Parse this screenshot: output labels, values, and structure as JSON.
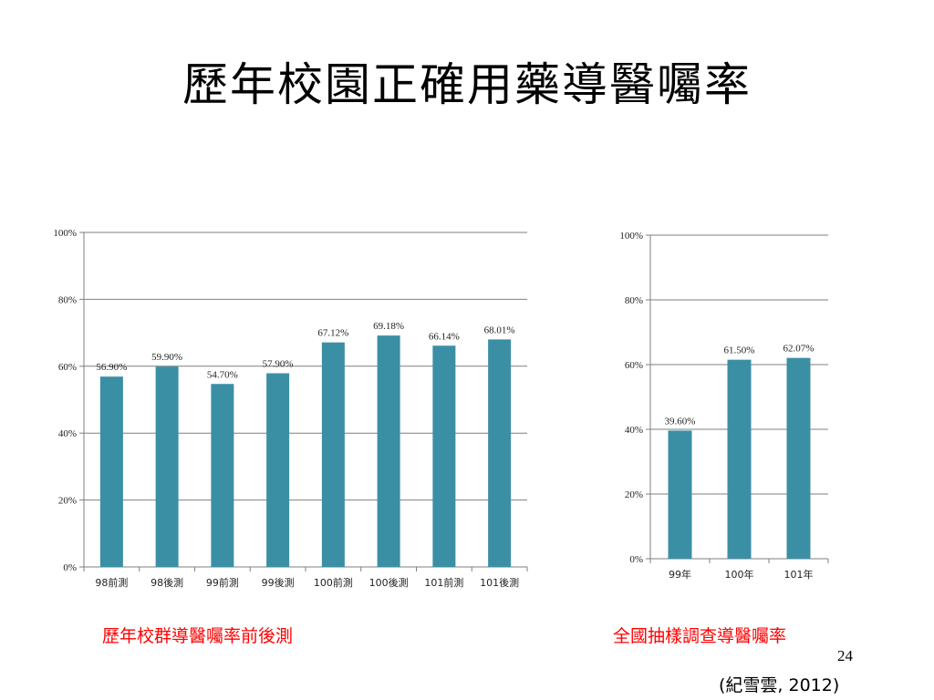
{
  "title": "歷年校園正確用藥導醫囑率",
  "colors": {
    "bar": "#3b8fa5",
    "grid": "#7f7f7f",
    "caption": "#ff0000"
  },
  "chart_data": [
    {
      "type": "bar",
      "title": "",
      "xlabel": "",
      "ylabel": "",
      "categories": [
        "98前測",
        "98後測",
        "99前測",
        "99後測",
        "100前測",
        "100後測",
        "101前測",
        "101後測"
      ],
      "values": [
        56.9,
        59.9,
        54.7,
        57.9,
        67.12,
        69.18,
        66.14,
        68.01
      ],
      "data_labels": [
        "56.90%",
        "59.90%",
        "54.70%",
        "57.90%",
        "67.12%",
        "69.18%",
        "66.14%",
        "68.01%"
      ],
      "ylim": [
        0,
        100
      ],
      "yticks": [
        "0%",
        "20%",
        "40%",
        "60%",
        "80%",
        "100%"
      ],
      "grid": true
    },
    {
      "type": "bar",
      "title": "",
      "xlabel": "",
      "ylabel": "",
      "categories": [
        "99年",
        "100年",
        "101年"
      ],
      "values": [
        39.6,
        61.5,
        62.07
      ],
      "data_labels": [
        "39.60%",
        "61.50%",
        "62.07%"
      ],
      "ylim": [
        0,
        100
      ],
      "yticks": [
        "0%",
        "20%",
        "40%",
        "60%",
        "80%",
        "100%"
      ],
      "grid": true
    }
  ],
  "captions": {
    "left": "歷年校群導醫囑率前後測",
    "right": "全國抽樣調查導醫囑率"
  },
  "page_number": "24",
  "citation": "(紀雪雲, 2012)"
}
